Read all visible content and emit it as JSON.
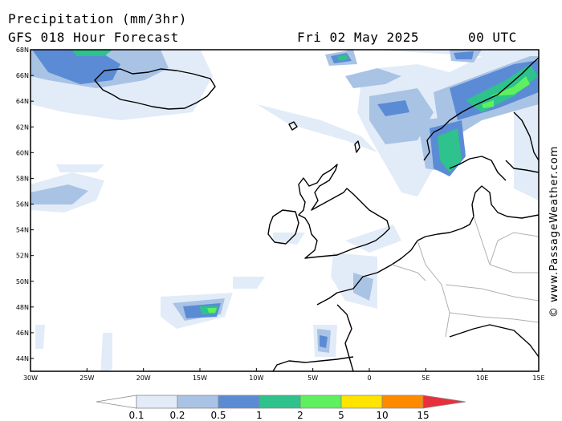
{
  "header": {
    "line1": "Precipitation (mm/3hr)",
    "model": "GFS 018 Hour Forecast",
    "date": "Fri 02 May 2025",
    "time": "00 UTC"
  },
  "credit": "© www.PassageWeather.com",
  "axes": {
    "lat_labels": [
      "68N",
      "66N",
      "64N",
      "62N",
      "60N",
      "58N",
      "56N",
      "54N",
      "52N",
      "50N",
      "48N",
      "46N",
      "44N"
    ],
    "lon_labels": [
      "30W",
      "25W",
      "20W",
      "15W",
      "10W",
      "5W",
      "0",
      "5E",
      "10E",
      "15E"
    ]
  },
  "legend": {
    "ticks": [
      "0.1",
      "0.2",
      "0.5",
      "1",
      "2",
      "5",
      "10",
      "15"
    ],
    "colors": [
      "#ffffff",
      "#e2ecf8",
      "#a9c3e5",
      "#5b8bd5",
      "#2ec28c",
      "#5ef05e",
      "#ffe400",
      "#ff8a00",
      "#e8303c"
    ]
  }
}
